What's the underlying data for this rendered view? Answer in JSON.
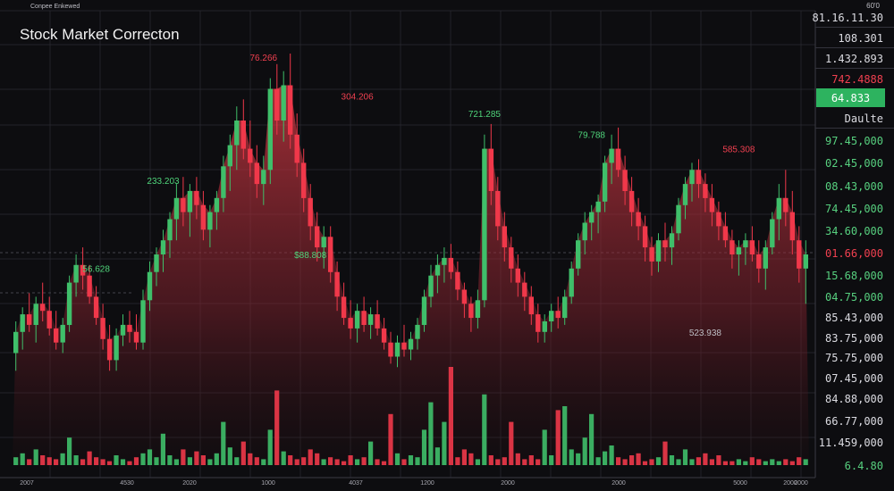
{
  "header": {
    "left_caption": "Conpee Enkewed",
    "right_caption": "60'0"
  },
  "chart_data": {
    "type": "candlestick",
    "title": "Stock Market Correcton",
    "xlabel": "",
    "ylabel": "",
    "grid": true,
    "x_tick_labels": [
      "2007",
      "4530",
      "2020",
      "1000",
      "4037",
      "1200",
      "2000",
      "2000",
      "5000",
      "2000",
      "2000"
    ],
    "price_range": [
      0,
      100
    ],
    "candles": [
      {
        "o": 30,
        "h": 39,
        "l": 25,
        "c": 36
      },
      {
        "o": 36,
        "h": 43,
        "l": 31,
        "c": 41
      },
      {
        "o": 41,
        "h": 47,
        "l": 36,
        "c": 38
      },
      {
        "o": 38,
        "h": 46,
        "l": 33,
        "c": 44
      },
      {
        "o": 44,
        "h": 50,
        "l": 39,
        "c": 42
      },
      {
        "o": 42,
        "h": 46,
        "l": 35,
        "c": 37
      },
      {
        "o": 37,
        "h": 42,
        "l": 31,
        "c": 33
      },
      {
        "o": 33,
        "h": 40,
        "l": 30,
        "c": 38
      },
      {
        "o": 38,
        "h": 52,
        "l": 36,
        "c": 50
      },
      {
        "o": 50,
        "h": 58,
        "l": 46,
        "c": 55
      },
      {
        "o": 55,
        "h": 60,
        "l": 48,
        "c": 52
      },
      {
        "o": 52,
        "h": 55,
        "l": 44,
        "c": 46
      },
      {
        "o": 46,
        "h": 49,
        "l": 38,
        "c": 40
      },
      {
        "o": 40,
        "h": 44,
        "l": 31,
        "c": 34
      },
      {
        "o": 34,
        "h": 38,
        "l": 25,
        "c": 28
      },
      {
        "o": 28,
        "h": 37,
        "l": 25,
        "c": 35
      },
      {
        "o": 35,
        "h": 41,
        "l": 32,
        "c": 38
      },
      {
        "o": 38,
        "h": 42,
        "l": 33,
        "c": 36
      },
      {
        "o": 36,
        "h": 41,
        "l": 31,
        "c": 33
      },
      {
        "o": 33,
        "h": 48,
        "l": 31,
        "c": 45
      },
      {
        "o": 45,
        "h": 56,
        "l": 42,
        "c": 53
      },
      {
        "o": 53,
        "h": 60,
        "l": 49,
        "c": 58
      },
      {
        "o": 58,
        "h": 65,
        "l": 53,
        "c": 62
      },
      {
        "o": 62,
        "h": 70,
        "l": 57,
        "c": 68
      },
      {
        "o": 68,
        "h": 78,
        "l": 62,
        "c": 74
      },
      {
        "o": 74,
        "h": 80,
        "l": 66,
        "c": 70
      },
      {
        "o": 70,
        "h": 78,
        "l": 63,
        "c": 76
      },
      {
        "o": 76,
        "h": 80,
        "l": 68,
        "c": 72
      },
      {
        "o": 72,
        "h": 76,
        "l": 62,
        "c": 65
      },
      {
        "o": 65,
        "h": 72,
        "l": 60,
        "c": 70
      },
      {
        "o": 70,
        "h": 76,
        "l": 65,
        "c": 74
      },
      {
        "o": 74,
        "h": 86,
        "l": 70,
        "c": 83
      },
      {
        "o": 83,
        "h": 92,
        "l": 76,
        "c": 89
      },
      {
        "o": 89,
        "h": 100,
        "l": 82,
        "c": 96
      },
      {
        "o": 96,
        "h": 102,
        "l": 85,
        "c": 88
      },
      {
        "o": 88,
        "h": 96,
        "l": 80,
        "c": 84
      },
      {
        "o": 84,
        "h": 89,
        "l": 74,
        "c": 78
      },
      {
        "o": 78,
        "h": 86,
        "l": 72,
        "c": 82
      },
      {
        "o": 82,
        "h": 108,
        "l": 78,
        "c": 105
      },
      {
        "o": 105,
        "h": 112,
        "l": 92,
        "c": 96
      },
      {
        "o": 96,
        "h": 110,
        "l": 90,
        "c": 106
      },
      {
        "o": 106,
        "h": 115,
        "l": 88,
        "c": 92
      },
      {
        "o": 92,
        "h": 98,
        "l": 80,
        "c": 84
      },
      {
        "o": 84,
        "h": 88,
        "l": 70,
        "c": 74
      },
      {
        "o": 74,
        "h": 78,
        "l": 62,
        "c": 66
      },
      {
        "o": 66,
        "h": 70,
        "l": 56,
        "c": 60
      },
      {
        "o": 60,
        "h": 66,
        "l": 54,
        "c": 63
      },
      {
        "o": 63,
        "h": 66,
        "l": 50,
        "c": 53
      },
      {
        "o": 53,
        "h": 56,
        "l": 42,
        "c": 46
      },
      {
        "o": 46,
        "h": 50,
        "l": 38,
        "c": 40
      },
      {
        "o": 40,
        "h": 45,
        "l": 34,
        "c": 37
      },
      {
        "o": 37,
        "h": 44,
        "l": 33,
        "c": 42
      },
      {
        "o": 42,
        "h": 46,
        "l": 36,
        "c": 38
      },
      {
        "o": 38,
        "h": 43,
        "l": 34,
        "c": 41
      },
      {
        "o": 41,
        "h": 45,
        "l": 35,
        "c": 37
      },
      {
        "o": 37,
        "h": 40,
        "l": 31,
        "c": 33
      },
      {
        "o": 33,
        "h": 36,
        "l": 27,
        "c": 29
      },
      {
        "o": 29,
        "h": 35,
        "l": 26,
        "c": 33
      },
      {
        "o": 33,
        "h": 38,
        "l": 29,
        "c": 31
      },
      {
        "o": 31,
        "h": 36,
        "l": 28,
        "c": 34
      },
      {
        "o": 34,
        "h": 40,
        "l": 31,
        "c": 38
      },
      {
        "o": 38,
        "h": 48,
        "l": 36,
        "c": 46
      },
      {
        "o": 46,
        "h": 55,
        "l": 43,
        "c": 52
      },
      {
        "o": 52,
        "h": 58,
        "l": 47,
        "c": 55
      },
      {
        "o": 55,
        "h": 60,
        "l": 50,
        "c": 57
      },
      {
        "o": 57,
        "h": 61,
        "l": 51,
        "c": 53
      },
      {
        "o": 53,
        "h": 56,
        "l": 45,
        "c": 48
      },
      {
        "o": 48,
        "h": 50,
        "l": 40,
        "c": 44
      },
      {
        "o": 44,
        "h": 46,
        "l": 36,
        "c": 40
      },
      {
        "o": 40,
        "h": 48,
        "l": 37,
        "c": 45
      },
      {
        "o": 45,
        "h": 92,
        "l": 43,
        "c": 88
      },
      {
        "o": 88,
        "h": 95,
        "l": 72,
        "c": 76
      },
      {
        "o": 76,
        "h": 80,
        "l": 62,
        "c": 66
      },
      {
        "o": 66,
        "h": 70,
        "l": 56,
        "c": 60
      },
      {
        "o": 60,
        "h": 63,
        "l": 50,
        "c": 54
      },
      {
        "o": 54,
        "h": 58,
        "l": 46,
        "c": 50
      },
      {
        "o": 50,
        "h": 53,
        "l": 42,
        "c": 46
      },
      {
        "o": 46,
        "h": 49,
        "l": 38,
        "c": 41
      },
      {
        "o": 41,
        "h": 44,
        "l": 33,
        "c": 36
      },
      {
        "o": 36,
        "h": 41,
        "l": 33,
        "c": 39
      },
      {
        "o": 39,
        "h": 44,
        "l": 36,
        "c": 42
      },
      {
        "o": 42,
        "h": 46,
        "l": 37,
        "c": 40
      },
      {
        "o": 40,
        "h": 48,
        "l": 38,
        "c": 46
      },
      {
        "o": 46,
        "h": 56,
        "l": 44,
        "c": 54
      },
      {
        "o": 54,
        "h": 64,
        "l": 52,
        "c": 62
      },
      {
        "o": 62,
        "h": 70,
        "l": 58,
        "c": 67
      },
      {
        "o": 67,
        "h": 72,
        "l": 62,
        "c": 70
      },
      {
        "o": 70,
        "h": 75,
        "l": 64,
        "c": 73
      },
      {
        "o": 73,
        "h": 86,
        "l": 70,
        "c": 84
      },
      {
        "o": 84,
        "h": 92,
        "l": 78,
        "c": 88
      },
      {
        "o": 88,
        "h": 94,
        "l": 80,
        "c": 82
      },
      {
        "o": 82,
        "h": 86,
        "l": 72,
        "c": 76
      },
      {
        "o": 76,
        "h": 80,
        "l": 66,
        "c": 70
      },
      {
        "o": 70,
        "h": 74,
        "l": 62,
        "c": 66
      },
      {
        "o": 66,
        "h": 69,
        "l": 56,
        "c": 60
      },
      {
        "o": 60,
        "h": 63,
        "l": 52,
        "c": 56
      },
      {
        "o": 56,
        "h": 64,
        "l": 53,
        "c": 62
      },
      {
        "o": 62,
        "h": 67,
        "l": 56,
        "c": 60
      },
      {
        "o": 60,
        "h": 66,
        "l": 55,
        "c": 64
      },
      {
        "o": 64,
        "h": 74,
        "l": 62,
        "c": 72
      },
      {
        "o": 72,
        "h": 80,
        "l": 68,
        "c": 78
      },
      {
        "o": 78,
        "h": 84,
        "l": 73,
        "c": 82
      },
      {
        "o": 82,
        "h": 85,
        "l": 74,
        "c": 78
      },
      {
        "o": 78,
        "h": 81,
        "l": 70,
        "c": 74
      },
      {
        "o": 74,
        "h": 78,
        "l": 66,
        "c": 70
      },
      {
        "o": 70,
        "h": 73,
        "l": 62,
        "c": 66
      },
      {
        "o": 66,
        "h": 70,
        "l": 60,
        "c": 62
      },
      {
        "o": 62,
        "h": 65,
        "l": 54,
        "c": 58
      },
      {
        "o": 58,
        "h": 62,
        "l": 52,
        "c": 60
      },
      {
        "o": 60,
        "h": 64,
        "l": 55,
        "c": 62
      },
      {
        "o": 62,
        "h": 66,
        "l": 56,
        "c": 58
      },
      {
        "o": 58,
        "h": 62,
        "l": 50,
        "c": 54
      },
      {
        "o": 54,
        "h": 62,
        "l": 48,
        "c": 60
      },
      {
        "o": 60,
        "h": 70,
        "l": 58,
        "c": 68
      },
      {
        "o": 68,
        "h": 78,
        "l": 62,
        "c": 74
      },
      {
        "o": 74,
        "h": 82,
        "l": 66,
        "c": 70
      },
      {
        "o": 70,
        "h": 76,
        "l": 58,
        "c": 62
      },
      {
        "o": 62,
        "h": 66,
        "l": 50,
        "c": 54
      },
      {
        "o": 54,
        "h": 62,
        "l": 44,
        "c": 58
      }
    ],
    "volumes": [
      4,
      6,
      3,
      8,
      5,
      4,
      3,
      6,
      14,
      5,
      3,
      7,
      4,
      3,
      2,
      5,
      3,
      2,
      4,
      6,
      8,
      4,
      16,
      5,
      3,
      8,
      4,
      7,
      5,
      3,
      6,
      22,
      9,
      4,
      12,
      6,
      4,
      3,
      18,
      38,
      7,
      5,
      3,
      4,
      8,
      6,
      3,
      4,
      3,
      2,
      5,
      3,
      4,
      12,
      3,
      2,
      26,
      6,
      3,
      5,
      4,
      18,
      32,
      9,
      22,
      50,
      4,
      8,
      6,
      3,
      36,
      5,
      3,
      4,
      22,
      6,
      3,
      5,
      3,
      18,
      5,
      28,
      30,
      8,
      6,
      14,
      26,
      4,
      7,
      10,
      4,
      3,
      5,
      6,
      2,
      3,
      4,
      12,
      5,
      3,
      8,
      3,
      4,
      6,
      3,
      5,
      2,
      2,
      3,
      2,
      4,
      3,
      2,
      3,
      2,
      3,
      2,
      4,
      3,
      2
    ],
    "annotations": [
      {
        "text": "76.266",
        "i": 37,
        "v": 113,
        "color": "red"
      },
      {
        "text": "233.203",
        "i": 22,
        "v": 78,
        "color": "green"
      },
      {
        "text": "56.628",
        "i": 12,
        "v": 53,
        "color": "green"
      },
      {
        "text": "304.206",
        "i": 51,
        "v": 102,
        "color": "red"
      },
      {
        "text": "$88.808",
        "i": 44,
        "v": 57,
        "color": "green"
      },
      {
        "text": "721.285",
        "i": 70,
        "v": 97,
        "color": "green"
      },
      {
        "text": "79.788",
        "i": 86,
        "v": 91,
        "color": "green"
      },
      {
        "text": "585.308",
        "i": 108,
        "v": 87,
        "color": "red"
      },
      {
        "text": "523.938",
        "i": 103,
        "v": 35,
        "color": "grey"
      }
    ],
    "right_axis": [
      {
        "text": "81.16.11.30",
        "style": "plain"
      },
      {
        "text": "108.301",
        "style": "plain"
      },
      {
        "text": "1.432.893",
        "style": "plain"
      },
      {
        "text": "742.4888",
        "style": "red"
      },
      {
        "text": "64.833",
        "style": "green-badge"
      },
      {
        "text": "Daulte",
        "style": "plain"
      },
      {
        "text": "97.45,000",
        "style": "green"
      },
      {
        "text": "02.45,000",
        "style": "green"
      },
      {
        "text": "08.43,000",
        "style": "green"
      },
      {
        "text": "74.45,000",
        "style": "green"
      },
      {
        "text": "34.60,000",
        "style": "green"
      },
      {
        "text": "01.66,000",
        "style": "red"
      },
      {
        "text": "15.68,000",
        "style": "green"
      },
      {
        "text": "04.75,000",
        "style": "green"
      },
      {
        "text": "85.43,000",
        "style": "plain"
      },
      {
        "text": "83.75,000",
        "style": "plain"
      },
      {
        "text": "75.75,000",
        "style": "plain"
      },
      {
        "text": "07.45,000",
        "style": "plain"
      },
      {
        "text": "84.88,000",
        "style": "plain"
      },
      {
        "text": "66.77,000",
        "style": "plain"
      },
      {
        "text": "11.459,000",
        "style": "plain"
      },
      {
        "text": "6.4.80",
        "style": "green"
      }
    ],
    "colors": {
      "up": "#3fbf6a",
      "down": "#f0384a",
      "background": "#0d0d10",
      "grid": "#2b2b33",
      "area": "#c0303a",
      "badge": "#2db35f"
    }
  }
}
